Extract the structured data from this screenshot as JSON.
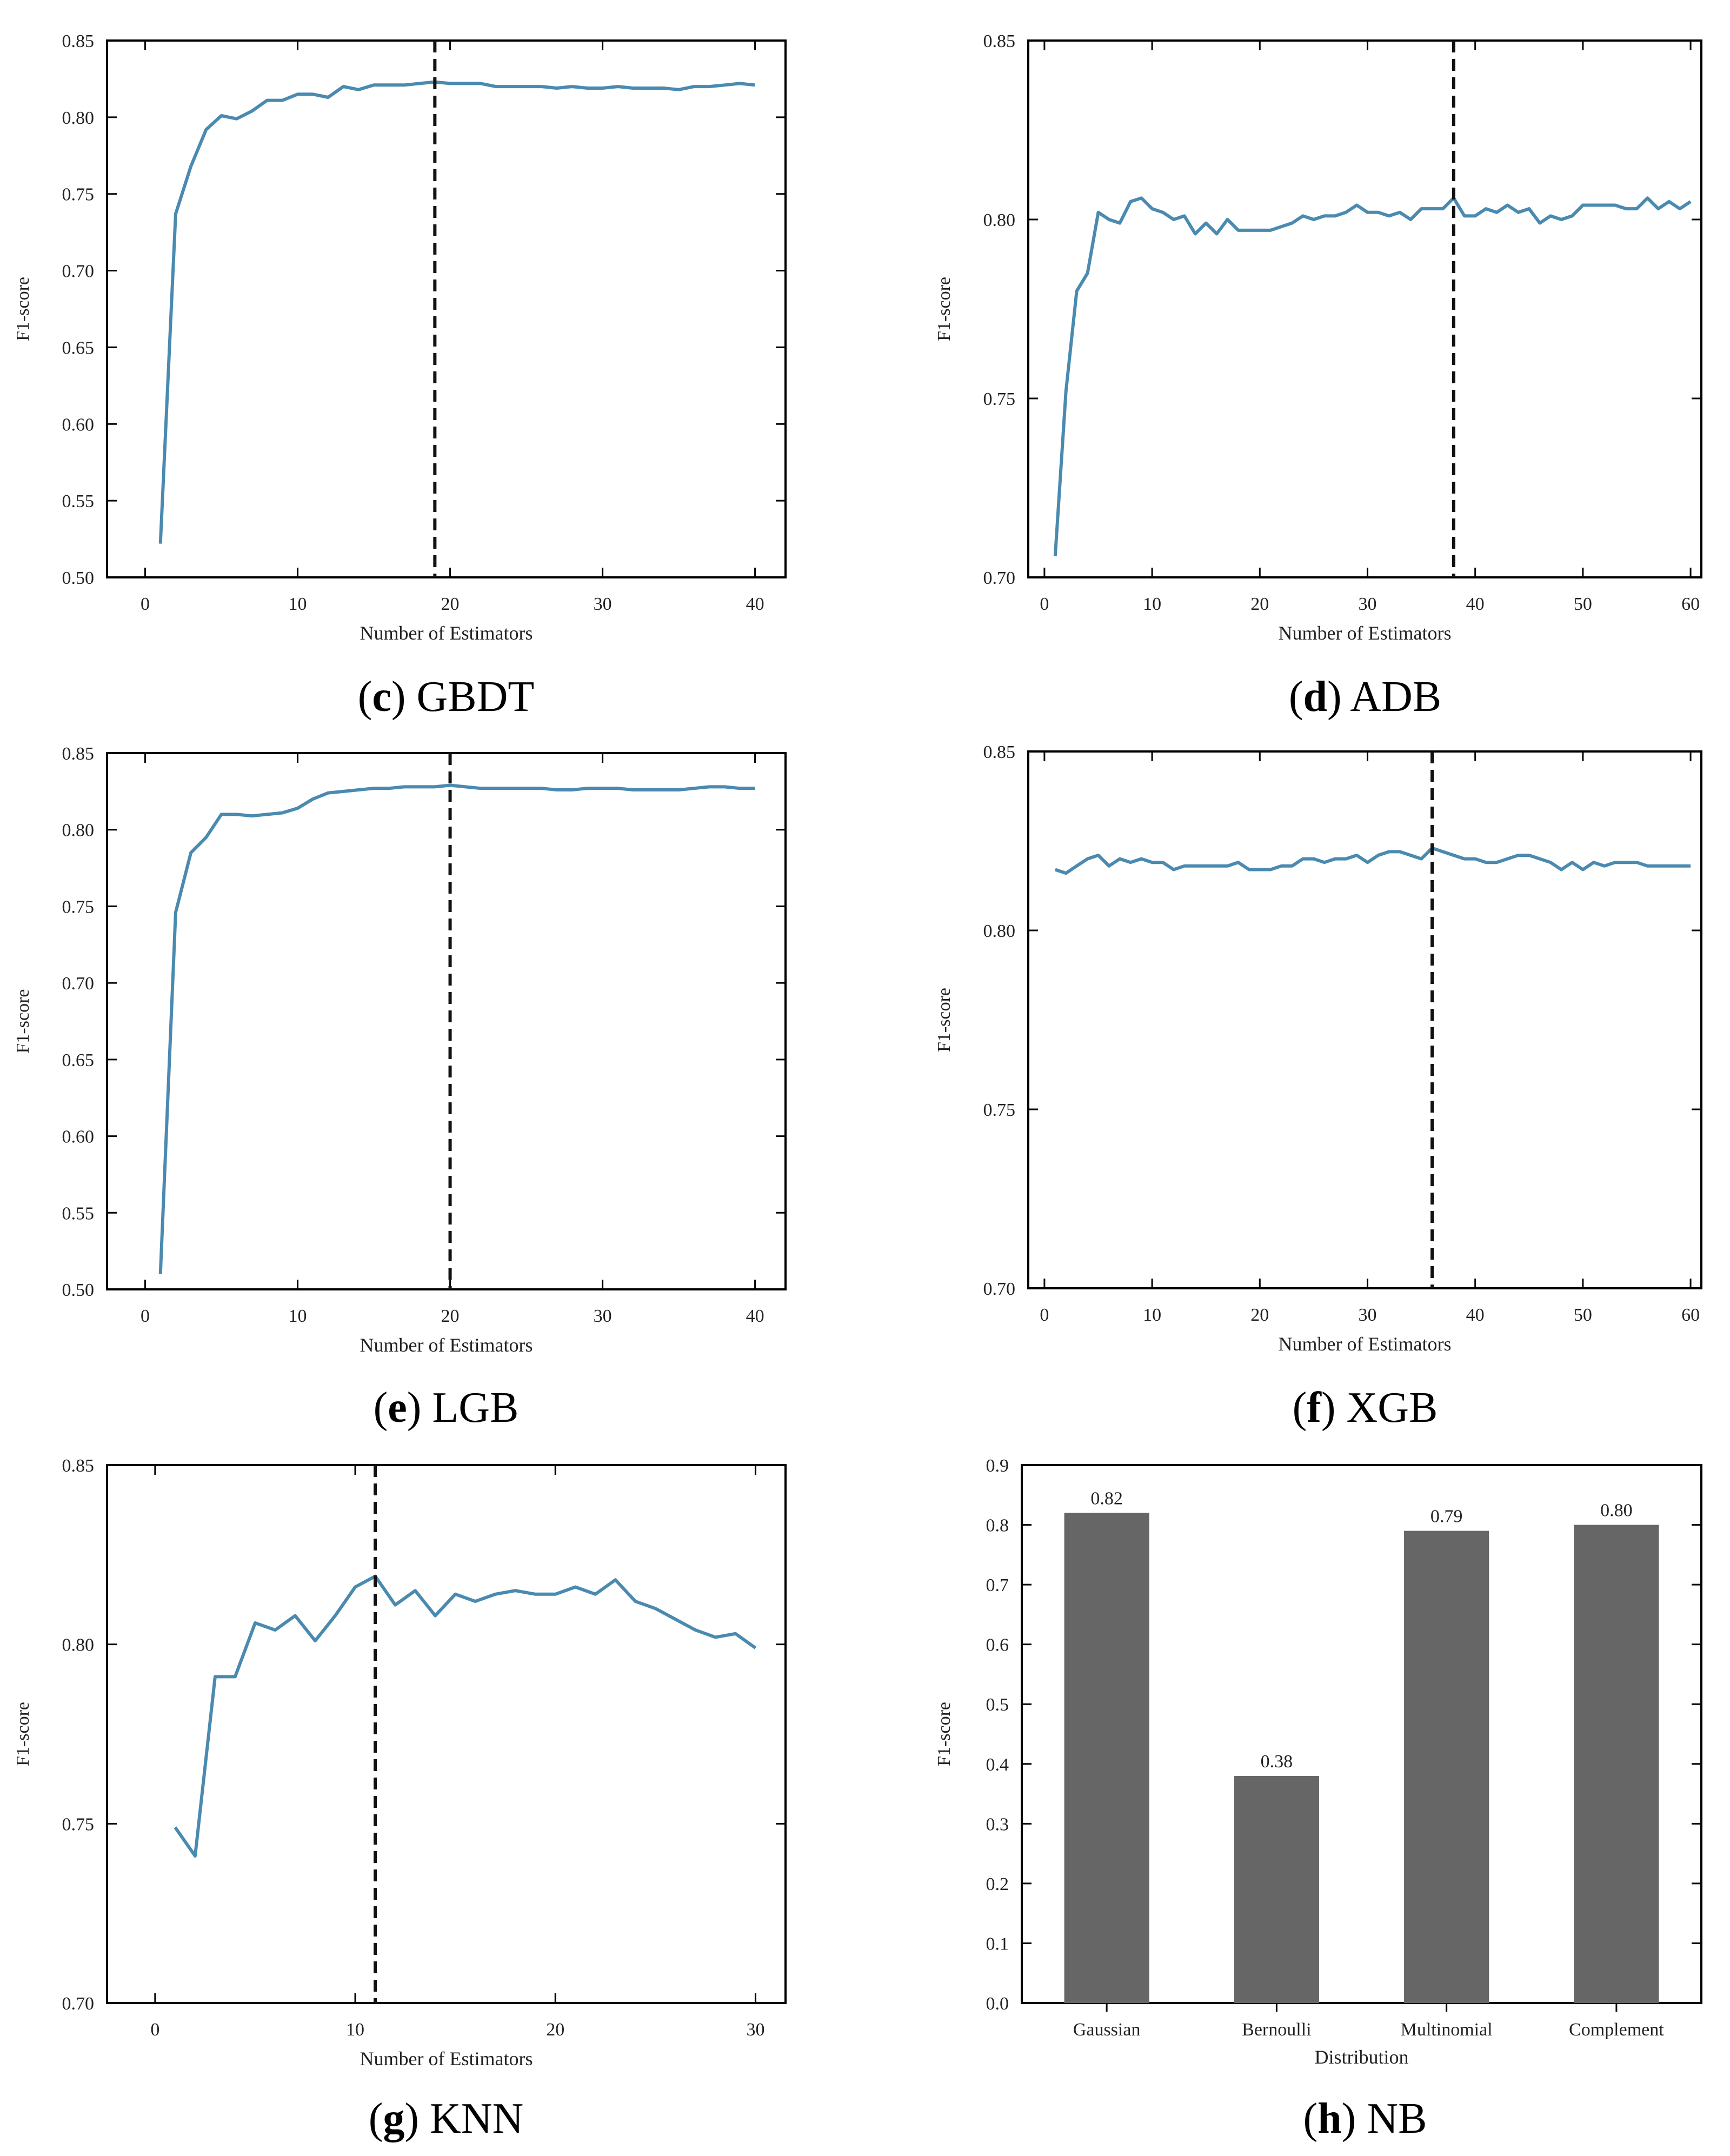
{
  "chart_data": [
    {
      "id": "c",
      "type": "line",
      "panel_letter": "c",
      "panel_name": "GBDT",
      "xlabel": "Number of Estimators",
      "ylabel": "F1-score",
      "xlim": [
        -2.5,
        42
      ],
      "ylim": [
        0.5,
        0.85
      ],
      "xticks": [
        0,
        10,
        20,
        30,
        40
      ],
      "yticks": [
        0.5,
        0.55,
        0.6,
        0.65,
        0.7,
        0.75,
        0.8,
        0.85
      ],
      "ytick_labels": [
        "0.50",
        "0.55",
        "0.60",
        "0.65",
        "0.70",
        "0.75",
        "0.80",
        "0.85"
      ],
      "vline": 19,
      "series": [
        {
          "color": "#4a8ab0",
          "x": [
            1,
            2,
            3,
            4,
            5,
            6,
            7,
            8,
            9,
            10,
            11,
            12,
            13,
            14,
            15,
            16,
            17,
            18,
            19,
            20,
            21,
            22,
            23,
            24,
            25,
            26,
            27,
            28,
            29,
            30,
            31,
            32,
            33,
            34,
            35,
            36,
            37,
            38,
            39,
            40
          ],
          "y": [
            0.522,
            0.737,
            0.768,
            0.792,
            0.801,
            0.799,
            0.804,
            0.811,
            0.811,
            0.815,
            0.815,
            0.813,
            0.82,
            0.818,
            0.821,
            0.821,
            0.821,
            0.822,
            0.823,
            0.822,
            0.822,
            0.822,
            0.82,
            0.82,
            0.82,
            0.82,
            0.819,
            0.82,
            0.819,
            0.819,
            0.82,
            0.819,
            0.819,
            0.819,
            0.818,
            0.82,
            0.82,
            0.821,
            0.822,
            0.821
          ]
        }
      ]
    },
    {
      "id": "d",
      "type": "line",
      "panel_letter": "d",
      "panel_name": "ADB",
      "xlabel": "Number of Estimators",
      "ylabel": "F1-score",
      "xlim": [
        -1.5,
        61
      ],
      "ylim": [
        0.7,
        0.85
      ],
      "xticks": [
        0,
        10,
        20,
        30,
        40,
        50,
        60
      ],
      "yticks": [
        0.7,
        0.75,
        0.8,
        0.85
      ],
      "ytick_labels": [
        "0.70",
        "0.75",
        "0.80",
        "0.85"
      ],
      "vline": 38,
      "series": [
        {
          "color": "#4a8ab0",
          "x": [
            1,
            2,
            3,
            4,
            5,
            6,
            7,
            8,
            9,
            10,
            11,
            12,
            13,
            14,
            15,
            16,
            17,
            18,
            19,
            20,
            21,
            22,
            23,
            24,
            25,
            26,
            27,
            28,
            29,
            30,
            31,
            32,
            33,
            34,
            35,
            36,
            37,
            38,
            39,
            40,
            41,
            42,
            43,
            44,
            45,
            46,
            47,
            48,
            49,
            50,
            51,
            52,
            53,
            54,
            55,
            56,
            57,
            58,
            59,
            60
          ],
          "y": [
            0.706,
            0.752,
            0.78,
            0.785,
            0.802,
            0.8,
            0.799,
            0.805,
            0.806,
            0.803,
            0.802,
            0.8,
            0.801,
            0.796,
            0.799,
            0.796,
            0.8,
            0.797,
            0.797,
            0.797,
            0.797,
            0.798,
            0.799,
            0.801,
            0.8,
            0.801,
            0.801,
            0.802,
            0.804,
            0.802,
            0.802,
            0.801,
            0.802,
            0.8,
            0.803,
            0.803,
            0.803,
            0.806,
            0.801,
            0.801,
            0.803,
            0.802,
            0.804,
            0.802,
            0.803,
            0.799,
            0.801,
            0.8,
            0.801,
            0.804,
            0.804,
            0.804,
            0.804,
            0.803,
            0.803,
            0.806,
            0.803,
            0.805,
            0.803,
            0.805
          ]
        }
      ]
    },
    {
      "id": "e",
      "type": "line",
      "panel_letter": "e",
      "panel_name": "LGB",
      "xlabel": "Number of Estimators",
      "ylabel": "F1-score",
      "xlim": [
        -2.5,
        42
      ],
      "ylim": [
        0.5,
        0.85
      ],
      "xticks": [
        0,
        10,
        20,
        30,
        40
      ],
      "yticks": [
        0.5,
        0.55,
        0.6,
        0.65,
        0.7,
        0.75,
        0.8,
        0.85
      ],
      "ytick_labels": [
        "0.50",
        "0.55",
        "0.60",
        "0.65",
        "0.70",
        "0.75",
        "0.80",
        "0.85"
      ],
      "vline": 20,
      "series": [
        {
          "color": "#4a8ab0",
          "x": [
            1,
            2,
            3,
            4,
            5,
            6,
            7,
            8,
            9,
            10,
            11,
            12,
            13,
            14,
            15,
            16,
            17,
            18,
            19,
            20,
            21,
            22,
            23,
            24,
            25,
            26,
            27,
            28,
            29,
            30,
            31,
            32,
            33,
            34,
            35,
            36,
            37,
            38,
            39,
            40
          ],
          "y": [
            0.51,
            0.746,
            0.785,
            0.795,
            0.81,
            0.81,
            0.809,
            0.81,
            0.811,
            0.814,
            0.82,
            0.824,
            0.825,
            0.826,
            0.827,
            0.827,
            0.828,
            0.828,
            0.828,
            0.829,
            0.828,
            0.827,
            0.827,
            0.827,
            0.827,
            0.827,
            0.826,
            0.826,
            0.827,
            0.827,
            0.827,
            0.826,
            0.826,
            0.826,
            0.826,
            0.827,
            0.828,
            0.828,
            0.827,
            0.827
          ]
        }
      ]
    },
    {
      "id": "f",
      "type": "line",
      "panel_letter": "f",
      "panel_name": "XGB",
      "xlabel": "Number of Estimators",
      "ylabel": "F1-score",
      "xlim": [
        -1.5,
        61
      ],
      "ylim": [
        0.7,
        0.85
      ],
      "xticks": [
        0,
        10,
        20,
        30,
        40,
        50,
        60
      ],
      "yticks": [
        0.7,
        0.75,
        0.8,
        0.85
      ],
      "ytick_labels": [
        "0.70",
        "0.75",
        "0.80",
        "0.85"
      ],
      "vline": 36,
      "series": [
        {
          "color": "#4a8ab0",
          "x": [
            1,
            2,
            3,
            4,
            5,
            6,
            7,
            8,
            9,
            10,
            11,
            12,
            13,
            14,
            15,
            16,
            17,
            18,
            19,
            20,
            21,
            22,
            23,
            24,
            25,
            26,
            27,
            28,
            29,
            30,
            31,
            32,
            33,
            34,
            35,
            36,
            37,
            38,
            39,
            40,
            41,
            42,
            43,
            44,
            45,
            46,
            47,
            48,
            49,
            50,
            51,
            52,
            53,
            54,
            55,
            56,
            57,
            58,
            59,
            60
          ],
          "y": [
            0.817,
            0.816,
            0.818,
            0.82,
            0.821,
            0.818,
            0.82,
            0.819,
            0.82,
            0.819,
            0.819,
            0.817,
            0.818,
            0.818,
            0.818,
            0.818,
            0.818,
            0.819,
            0.817,
            0.817,
            0.817,
            0.818,
            0.818,
            0.82,
            0.82,
            0.819,
            0.82,
            0.82,
            0.821,
            0.819,
            0.821,
            0.822,
            0.822,
            0.821,
            0.82,
            0.823,
            0.822,
            0.821,
            0.82,
            0.82,
            0.819,
            0.819,
            0.82,
            0.821,
            0.821,
            0.82,
            0.819,
            0.817,
            0.819,
            0.817,
            0.819,
            0.818,
            0.819,
            0.819,
            0.819,
            0.818,
            0.818,
            0.818,
            0.818,
            0.818
          ]
        }
      ]
    },
    {
      "id": "g",
      "type": "line",
      "panel_letter": "g",
      "panel_name": "KNN",
      "xlabel": "Number of Estimators",
      "ylabel": "F1-score",
      "xlim": [
        -2.4,
        31.5
      ],
      "ylim": [
        0.7,
        0.85
      ],
      "xticks": [
        0,
        10,
        20,
        30
      ],
      "yticks": [
        0.7,
        0.75,
        0.8,
        0.85
      ],
      "ytick_labels": [
        "0.70",
        "0.75",
        "0.80",
        "0.85"
      ],
      "vline": 11,
      "series": [
        {
          "color": "#4a8ab0",
          "x": [
            1,
            2,
            3,
            4,
            5,
            6,
            7,
            8,
            9,
            10,
            11,
            12,
            13,
            14,
            15,
            16,
            17,
            18,
            19,
            20,
            21,
            22,
            23,
            24,
            25,
            26,
            27,
            28,
            29,
            30
          ],
          "y": [
            0.749,
            0.741,
            0.791,
            0.791,
            0.806,
            0.804,
            0.808,
            0.801,
            0.808,
            0.816,
            0.819,
            0.811,
            0.815,
            0.808,
            0.814,
            0.812,
            0.814,
            0.815,
            0.814,
            0.814,
            0.816,
            0.814,
            0.818,
            0.812,
            0.81,
            0.807,
            0.804,
            0.802,
            0.803,
            0.799
          ]
        }
      ]
    },
    {
      "id": "h",
      "type": "bar",
      "panel_letter": "h",
      "panel_name": "NB",
      "xlabel": "Distribution",
      "ylabel": "F1-score",
      "categories": [
        "Gaussian",
        "Bernoulli",
        "Multinomial",
        "Complement"
      ],
      "values": [
        0.82,
        0.38,
        0.79,
        0.8
      ],
      "value_labels": [
        "0.82",
        "0.38",
        "0.79",
        "0.80"
      ],
      "ylim": [
        0.0,
        0.9
      ],
      "yticks": [
        0.0,
        0.1,
        0.2,
        0.3,
        0.4,
        0.5,
        0.6,
        0.7,
        0.8,
        0.9
      ],
      "ytick_labels": [
        "0.0",
        "0.1",
        "0.2",
        "0.3",
        "0.4",
        "0.5",
        "0.6",
        "0.7",
        "0.8",
        "0.9"
      ],
      "bar_color": "#666666"
    }
  ]
}
